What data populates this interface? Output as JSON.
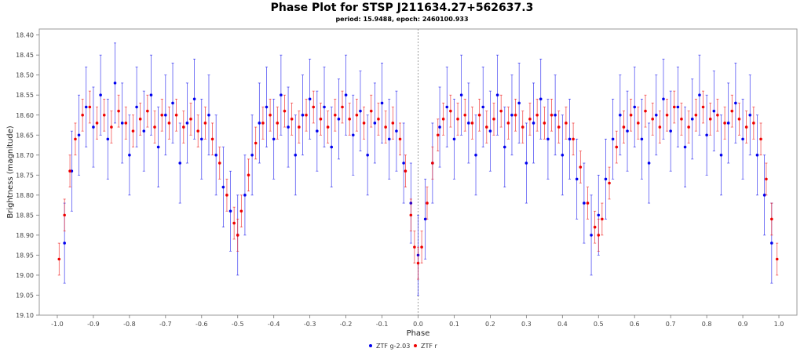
{
  "chart_data": {
    "type": "scatter",
    "title": "Phase Plot for STSP J211634.27+562637.3",
    "subtitle": "period: 15.9488, epoch: 2460100.933",
    "xlabel": "Phase",
    "ylabel": "Brightness (magnitude)",
    "xlim": [
      -1.05,
      1.05
    ],
    "ylim": [
      18.385,
      19.1
    ],
    "y_inverted": true,
    "x_ticks": [
      "-1.0",
      "-0.9",
      "-0.8",
      "-0.7",
      "-0.6",
      "-0.5",
      "-0.4",
      "-0.3",
      "-0.2",
      "-0.1",
      "0.0",
      "0.1",
      "0.2",
      "0.3",
      "0.4",
      "0.5",
      "0.6",
      "0.7",
      "0.8",
      "0.9",
      "1.0"
    ],
    "y_ticks": [
      "18.40",
      "18.45",
      "18.50",
      "18.55",
      "18.60",
      "18.65",
      "18.70",
      "18.75",
      "18.80",
      "18.85",
      "18.90",
      "18.95",
      "19.00",
      "19.05",
      "19.10"
    ],
    "grid": false,
    "reference_line_x": 0.0,
    "legend_position": "bottom-center",
    "legend": [
      {
        "name": "ZTF g-2.03",
        "color": "#0000ee"
      },
      {
        "name": "ZTF r",
        "color": "#ee0000"
      }
    ],
    "series": [
      {
        "name": "ZTF g-2.03",
        "color": "#0000ee",
        "error_typical": 0.1,
        "points": [
          [
            -0.98,
            18.92
          ],
          [
            -0.96,
            18.74
          ],
          [
            -0.94,
            18.65
          ],
          [
            -0.92,
            18.58
          ],
          [
            -0.9,
            18.63
          ],
          [
            -0.88,
            18.55
          ],
          [
            -0.86,
            18.66
          ],
          [
            -0.84,
            18.52
          ],
          [
            -0.82,
            18.62
          ],
          [
            -0.8,
            18.7
          ],
          [
            -0.78,
            18.58
          ],
          [
            -0.76,
            18.64
          ],
          [
            -0.74,
            18.55
          ],
          [
            -0.72,
            18.68
          ],
          [
            -0.7,
            18.6
          ],
          [
            -0.68,
            18.57
          ],
          [
            -0.66,
            18.72
          ],
          [
            -0.64,
            18.62
          ],
          [
            -0.62,
            18.56
          ],
          [
            -0.6,
            18.66
          ],
          [
            -0.58,
            18.6
          ],
          [
            -0.56,
            18.7
          ],
          [
            -0.54,
            18.78
          ],
          [
            -0.52,
            18.84
          ],
          [
            -0.5,
            18.9
          ],
          [
            -0.48,
            18.8
          ],
          [
            -0.46,
            18.7
          ],
          [
            -0.44,
            18.62
          ],
          [
            -0.42,
            18.58
          ],
          [
            -0.4,
            18.66
          ],
          [
            -0.38,
            18.55
          ],
          [
            -0.36,
            18.63
          ],
          [
            -0.34,
            18.7
          ],
          [
            -0.32,
            18.6
          ],
          [
            -0.3,
            18.56
          ],
          [
            -0.28,
            18.64
          ],
          [
            -0.26,
            18.58
          ],
          [
            -0.24,
            18.68
          ],
          [
            -0.22,
            18.61
          ],
          [
            -0.2,
            18.55
          ],
          [
            -0.18,
            18.65
          ],
          [
            -0.16,
            18.59
          ],
          [
            -0.14,
            18.7
          ],
          [
            -0.12,
            18.62
          ],
          [
            -0.1,
            18.57
          ],
          [
            -0.08,
            18.66
          ],
          [
            -0.06,
            18.64
          ],
          [
            -0.04,
            18.72
          ],
          [
            -0.02,
            18.82
          ],
          [
            0.0,
            18.95
          ],
          [
            0.02,
            18.86
          ],
          [
            0.04,
            18.72
          ],
          [
            0.06,
            18.63
          ],
          [
            0.08,
            18.58
          ],
          [
            0.1,
            18.66
          ],
          [
            0.12,
            18.55
          ],
          [
            0.14,
            18.62
          ],
          [
            0.16,
            18.7
          ],
          [
            0.18,
            18.58
          ],
          [
            0.2,
            18.64
          ],
          [
            0.22,
            18.55
          ],
          [
            0.24,
            18.68
          ],
          [
            0.26,
            18.6
          ],
          [
            0.28,
            18.57
          ],
          [
            0.3,
            18.72
          ],
          [
            0.32,
            18.62
          ],
          [
            0.34,
            18.56
          ],
          [
            0.36,
            18.66
          ],
          [
            0.38,
            18.6
          ],
          [
            0.4,
            18.7
          ],
          [
            0.42,
            18.66
          ],
          [
            0.44,
            18.76
          ],
          [
            0.46,
            18.82
          ],
          [
            0.48,
            18.9
          ],
          [
            0.5,
            18.85
          ],
          [
            0.52,
            18.76
          ],
          [
            0.54,
            18.66
          ],
          [
            0.56,
            18.6
          ],
          [
            0.58,
            18.64
          ],
          [
            0.6,
            18.58
          ],
          [
            0.62,
            18.66
          ],
          [
            0.64,
            18.72
          ],
          [
            0.66,
            18.6
          ],
          [
            0.68,
            18.56
          ],
          [
            0.7,
            18.64
          ],
          [
            0.72,
            18.58
          ],
          [
            0.74,
            18.68
          ],
          [
            0.76,
            18.61
          ],
          [
            0.78,
            18.55
          ],
          [
            0.8,
            18.65
          ],
          [
            0.82,
            18.59
          ],
          [
            0.84,
            18.7
          ],
          [
            0.86,
            18.62
          ],
          [
            0.88,
            18.57
          ],
          [
            0.9,
            18.66
          ],
          [
            0.92,
            18.6
          ],
          [
            0.94,
            18.7
          ],
          [
            0.96,
            18.8
          ],
          [
            0.98,
            18.92
          ]
        ]
      },
      {
        "name": "ZTF r",
        "color": "#ee0000",
        "error_typical": 0.04,
        "points": [
          [
            -0.995,
            18.96
          ],
          [
            -0.98,
            18.85
          ],
          [
            -0.965,
            18.74
          ],
          [
            -0.95,
            18.66
          ],
          [
            -0.93,
            18.6
          ],
          [
            -0.91,
            18.58
          ],
          [
            -0.89,
            18.62
          ],
          [
            -0.87,
            18.6
          ],
          [
            -0.85,
            18.63
          ],
          [
            -0.83,
            18.59
          ],
          [
            -0.81,
            18.62
          ],
          [
            -0.79,
            18.64
          ],
          [
            -0.77,
            18.61
          ],
          [
            -0.75,
            18.59
          ],
          [
            -0.73,
            18.63
          ],
          [
            -0.71,
            18.6
          ],
          [
            -0.69,
            18.62
          ],
          [
            -0.67,
            18.6
          ],
          [
            -0.65,
            18.63
          ],
          [
            -0.63,
            18.61
          ],
          [
            -0.61,
            18.64
          ],
          [
            -0.59,
            18.62
          ],
          [
            -0.57,
            18.66
          ],
          [
            -0.55,
            18.72
          ],
          [
            -0.53,
            18.8
          ],
          [
            -0.51,
            18.87
          ],
          [
            -0.5,
            18.9
          ],
          [
            -0.49,
            18.84
          ],
          [
            -0.47,
            18.75
          ],
          [
            -0.45,
            18.67
          ],
          [
            -0.43,
            18.62
          ],
          [
            -0.41,
            18.6
          ],
          [
            -0.39,
            18.62
          ],
          [
            -0.37,
            18.59
          ],
          [
            -0.35,
            18.61
          ],
          [
            -0.33,
            18.63
          ],
          [
            -0.31,
            18.6
          ],
          [
            -0.29,
            18.58
          ],
          [
            -0.27,
            18.61
          ],
          [
            -0.25,
            18.63
          ],
          [
            -0.23,
            18.6
          ],
          [
            -0.21,
            18.58
          ],
          [
            -0.19,
            18.61
          ],
          [
            -0.17,
            18.6
          ],
          [
            -0.15,
            18.62
          ],
          [
            -0.13,
            18.59
          ],
          [
            -0.11,
            18.61
          ],
          [
            -0.09,
            18.63
          ],
          [
            -0.07,
            18.62
          ],
          [
            -0.05,
            18.66
          ],
          [
            -0.035,
            18.74
          ],
          [
            -0.02,
            18.85
          ],
          [
            -0.01,
            18.93
          ],
          [
            0.0,
            18.97
          ],
          [
            0.01,
            18.93
          ],
          [
            0.025,
            18.82
          ],
          [
            0.04,
            18.72
          ],
          [
            0.055,
            18.65
          ],
          [
            0.07,
            18.61
          ],
          [
            0.09,
            18.59
          ],
          [
            0.11,
            18.61
          ],
          [
            0.13,
            18.6
          ],
          [
            0.15,
            18.62
          ],
          [
            0.17,
            18.6
          ],
          [
            0.19,
            18.63
          ],
          [
            0.21,
            18.61
          ],
          [
            0.23,
            18.59
          ],
          [
            0.25,
            18.62
          ],
          [
            0.27,
            18.6
          ],
          [
            0.29,
            18.63
          ],
          [
            0.31,
            18.61
          ],
          [
            0.33,
            18.6
          ],
          [
            0.35,
            18.62
          ],
          [
            0.37,
            18.6
          ],
          [
            0.39,
            18.63
          ],
          [
            0.41,
            18.62
          ],
          [
            0.43,
            18.66
          ],
          [
            0.45,
            18.73
          ],
          [
            0.47,
            18.82
          ],
          [
            0.49,
            18.88
          ],
          [
            0.5,
            18.9
          ],
          [
            0.51,
            18.86
          ],
          [
            0.53,
            18.77
          ],
          [
            0.55,
            18.68
          ],
          [
            0.57,
            18.63
          ],
          [
            0.59,
            18.6
          ],
          [
            0.61,
            18.62
          ],
          [
            0.63,
            18.59
          ],
          [
            0.65,
            18.61
          ],
          [
            0.67,
            18.63
          ],
          [
            0.69,
            18.6
          ],
          [
            0.71,
            18.58
          ],
          [
            0.73,
            18.61
          ],
          [
            0.75,
            18.63
          ],
          [
            0.77,
            18.6
          ],
          [
            0.79,
            18.58
          ],
          [
            0.81,
            18.61
          ],
          [
            0.83,
            18.6
          ],
          [
            0.85,
            18.62
          ],
          [
            0.87,
            18.59
          ],
          [
            0.89,
            18.61
          ],
          [
            0.91,
            18.63
          ],
          [
            0.93,
            18.62
          ],
          [
            0.95,
            18.66
          ],
          [
            0.965,
            18.76
          ],
          [
            0.98,
            18.86
          ],
          [
            0.995,
            18.96
          ]
        ]
      }
    ]
  }
}
